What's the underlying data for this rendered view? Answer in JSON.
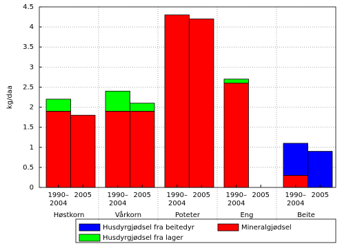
{
  "chart_data": {
    "type": "stacked-bar",
    "y_label": "kg/daa",
    "groups": [
      "Høstkorn",
      "Vårkorn",
      "Poteter",
      "Eng",
      "Beite"
    ],
    "periods": [
      [
        "1990–",
        "2004"
      ],
      [
        "2005"
      ]
    ],
    "series": [
      {
        "name": "Mineralgjødsel",
        "color": "#ff0000",
        "values": [
          1.9,
          1.8,
          1.9,
          1.9,
          4.3,
          4.2,
          2.6,
          0,
          0.3,
          0
        ]
      },
      {
        "name": "Husdyrgjødsel fra lager",
        "color": "#00ff00",
        "values": [
          0.3,
          0,
          0.5,
          0.2,
          0,
          0,
          0.1,
          0,
          0,
          0
        ]
      },
      {
        "name": "Husdyrgjødsel fra beitedyr",
        "color": "#0000ff",
        "values": [
          0,
          0,
          0,
          0,
          0,
          0,
          0,
          0,
          0.8,
          0.9
        ]
      }
    ],
    "ylim": [
      0,
      4.5
    ],
    "yticks": [
      0,
      0.5,
      1,
      1.5,
      2,
      2.5,
      3,
      3.5,
      4,
      4.5
    ],
    "grid": true
  }
}
